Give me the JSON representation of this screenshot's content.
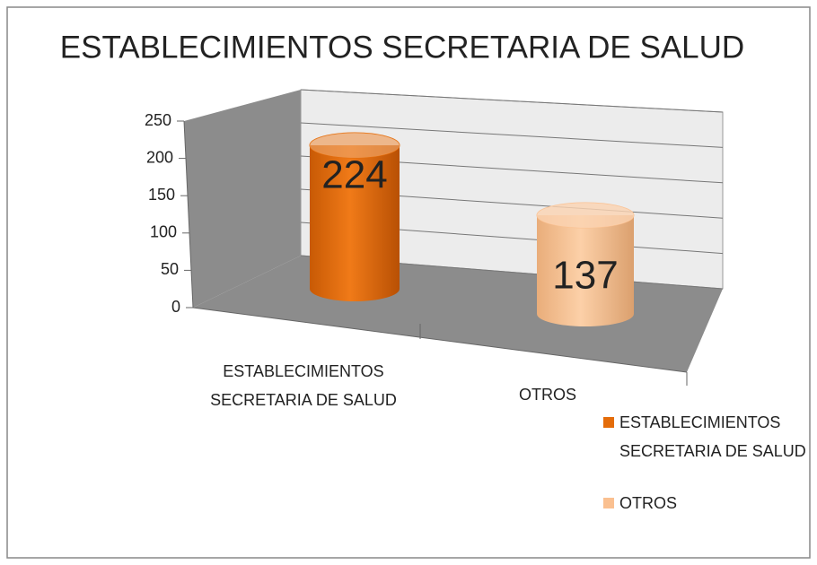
{
  "chart_data": {
    "type": "bar3d",
    "title": "ESTABLECIMIENTOS  SECRETARIA DE SALUD",
    "categories": [
      "ESTABLECIMIENTOS SECRETARIA DE SALUD",
      "OTROS"
    ],
    "values": [
      224,
      137
    ],
    "colors": [
      "#e46c0a",
      "#fac090"
    ],
    "ylim": [
      0,
      250
    ],
    "yticks": [
      0,
      50,
      100,
      150,
      200,
      250
    ],
    "grid": true,
    "legend": "bottom-right"
  }
}
